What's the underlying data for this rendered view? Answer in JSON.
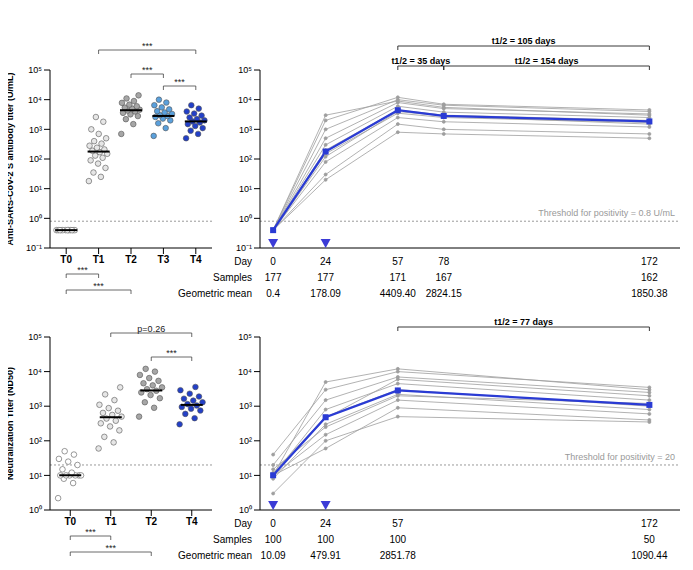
{
  "chart_data": [
    {
      "type": "scatter",
      "log": "y",
      "y_label": "Anti-SARS-CoV-2 S antibody titer (U/mL)",
      "categories": [
        "T0",
        "T1",
        "T2",
        "T3",
        "T4"
      ],
      "groups": [
        {
          "category": "T0",
          "color": "#ffffff",
          "values": [
            0.4,
            0.4,
            0.4,
            0.4,
            0.4,
            0.4,
            0.4,
            0.4,
            0.4,
            0.4,
            0.4,
            0.4
          ]
        },
        {
          "category": "T1",
          "color": "#e6e6e6",
          "values": [
            18,
            25,
            35,
            50,
            70,
            90,
            110,
            130,
            150,
            170,
            190,
            210,
            240,
            280,
            330,
            400,
            500,
            700,
            1000,
            1800,
            2600
          ]
        },
        {
          "category": "T2",
          "color": "#a6a6a6",
          "values": [
            700,
            1500,
            2200,
            2800,
            3200,
            3600,
            4000,
            4300,
            4600,
            5000,
            5400,
            6000,
            6800,
            7800,
            9000,
            11000,
            14000
          ]
        },
        {
          "category": "T3",
          "color": "#5aa0dc",
          "values": [
            600,
            1100,
            1600,
            2000,
            2300,
            2600,
            2800,
            3000,
            3300,
            3700,
            4100,
            4700,
            5500,
            6500,
            8000,
            10000
          ]
        },
        {
          "category": "T4",
          "color": "#2340c8",
          "values": [
            500,
            700,
            900,
            1100,
            1300,
            1500,
            1700,
            1850,
            2000,
            2200,
            2500,
            2900,
            3400,
            4000,
            5000,
            6500
          ]
        }
      ],
      "geometric_means": [
        0.4,
        178.09,
        4409.4,
        2824.15,
        1850.38
      ],
      "threshold": 0.8,
      "ylim": [
        0.1,
        100000
      ],
      "yticks": [
        {
          "value": 0.1,
          "label": "10⁻¹"
        },
        {
          "value": 1,
          "label": "10⁰"
        },
        {
          "value": 10,
          "label": "10¹"
        },
        {
          "value": 100,
          "label": "10²"
        },
        {
          "value": 1000,
          "label": "10³"
        },
        {
          "value": 10000,
          "label": "10⁴"
        },
        {
          "value": 100000,
          "label": "10⁵"
        }
      ],
      "brackets": [
        {
          "from": "T1",
          "to": "T4",
          "label": "***"
        },
        {
          "from": "T2",
          "to": "T3",
          "label": "***"
        },
        {
          "from": "T3",
          "to": "T4",
          "label": "***"
        }
      ],
      "brackets_below": [
        {
          "from": "T0",
          "to": "T1",
          "label": "***"
        },
        {
          "from": "T0",
          "to": "T2",
          "label": "***"
        }
      ]
    },
    {
      "type": "line",
      "log": "y",
      "x": [
        0,
        24,
        57,
        78,
        172
      ],
      "xlim": [
        -6,
        186
      ],
      "ylim": [
        0.1,
        100000
      ],
      "yticks": [
        {
          "value": 0.1,
          "label": "10⁻¹"
        },
        {
          "value": 1,
          "label": "10⁰"
        },
        {
          "value": 10,
          "label": "10¹"
        },
        {
          "value": 100,
          "label": "10²"
        },
        {
          "value": 1000,
          "label": "10³"
        },
        {
          "value": 10000,
          "label": "10⁴"
        },
        {
          "value": 100000,
          "label": "10⁵"
        }
      ],
      "individual_color": "#9e9e9e",
      "individual_values": [
        [
          0.4,
          30,
          1500,
          1000,
          700
        ],
        [
          0.4,
          80,
          2500,
          1800,
          1200
        ],
        [
          0.4,
          150,
          3500,
          2500,
          1700
        ],
        [
          0.4,
          200,
          4500,
          3000,
          2000
        ],
        [
          0.4,
          300,
          6000,
          3800,
          2500
        ],
        [
          0.4,
          500,
          8000,
          5000,
          3300
        ],
        [
          0.4,
          1000,
          10000,
          6500,
          4000
        ],
        [
          0.4,
          2000,
          12000,
          7000,
          4500
        ],
        [
          0.4,
          20,
          800,
          700,
          500
        ],
        [
          0.4,
          120,
          4000,
          2800,
          1500
        ],
        [
          0.4,
          3000,
          9000,
          5500,
          3000
        ]
      ],
      "geometric_mean": {
        "color": "#2a3bd4",
        "values": [
          0.4,
          178.09,
          4409.4,
          2824.15,
          1850.38
        ],
        "value_labels": [
          "0.4",
          "178.09",
          "4409.40",
          "2824.15",
          "1850.38"
        ]
      },
      "x_label": "Day",
      "samples_label": "Samples",
      "samples": [
        177,
        177,
        171,
        167,
        162
      ],
      "mean_label": "Geometric mean",
      "threshold": {
        "value": 0.8,
        "label": "Threshold for positivity = 0.8 U/mL"
      },
      "dose_days": [
        0,
        24
      ],
      "dose_color": "#3b3bd6",
      "half_lives": [
        {
          "from": 57,
          "to": 172,
          "label": "t1/2 = 105 days"
        },
        {
          "from": 57,
          "to": 78,
          "label": "t1/2 = 35 days"
        },
        {
          "from": 78,
          "to": 172,
          "label": "t1/2 = 154 days"
        }
      ]
    },
    {
      "type": "scatter",
      "log": "y",
      "y_label": "Neutralization Titer (ND50)",
      "categories": [
        "T0",
        "T1",
        "T2",
        "T4"
      ],
      "groups": [
        {
          "category": "T0",
          "color": "#ffffff",
          "values": [
            2.2,
            6,
            8,
            10,
            10,
            10,
            10,
            10,
            10,
            12,
            15,
            20,
            25,
            30,
            40,
            50
          ]
        },
        {
          "category": "T1",
          "color": "#e6e6e6",
          "values": [
            60,
            90,
            130,
            200,
            260,
            320,
            380,
            440,
            500,
            560,
            640,
            740,
            880,
            1100,
            1500,
            2200,
            3500
          ]
        },
        {
          "category": "T2",
          "color": "#a6a6a6",
          "values": [
            500,
            900,
            1300,
            1700,
            2100,
            2500,
            2800,
            3100,
            3500,
            4000,
            4600,
            5400,
            6500,
            8000,
            10000,
            12000
          ]
        },
        {
          "category": "T4",
          "color": "#2340c8",
          "values": [
            300,
            450,
            600,
            750,
            850,
            950,
            1050,
            1150,
            1300,
            1450,
            1650,
            1900,
            2300,
            2900,
            3600
          ]
        }
      ],
      "geometric_means": [
        10.09,
        479.91,
        2851.78,
        1090.44
      ],
      "threshold": 20,
      "ylim": [
        1,
        100000
      ],
      "yticks": [
        {
          "value": 1,
          "label": "10⁰"
        },
        {
          "value": 10,
          "label": "10¹"
        },
        {
          "value": 100,
          "label": "10²"
        },
        {
          "value": 1000,
          "label": "10³"
        },
        {
          "value": 10000,
          "label": "10⁴"
        },
        {
          "value": 100000,
          "label": "10⁵"
        }
      ],
      "brackets": [
        {
          "from": "T1",
          "to": "T4",
          "label": "p=0.26"
        },
        {
          "from": "T2",
          "to": "T4",
          "label": "***"
        }
      ],
      "brackets_below": [
        {
          "from": "T0",
          "to": "T1",
          "label": "***"
        },
        {
          "from": "T0",
          "to": "T2",
          "label": "***"
        }
      ]
    },
    {
      "type": "line",
      "log": "y",
      "x": [
        0,
        24,
        57,
        172
      ],
      "xlim": [
        -6,
        186
      ],
      "ylim": [
        1,
        100000
      ],
      "yticks": [
        {
          "value": 1,
          "label": "10⁰"
        },
        {
          "value": 10,
          "label": "10¹"
        },
        {
          "value": 100,
          "label": "10²"
        },
        {
          "value": 1000,
          "label": "10³"
        },
        {
          "value": 10000,
          "label": "10⁴"
        },
        {
          "value": 100000,
          "label": "10⁵"
        }
      ],
      "individual_color": "#9e9e9e",
      "individual_values": [
        [
          10,
          60,
          900,
          400
        ],
        [
          10,
          150,
          1500,
          600
        ],
        [
          8,
          300,
          2200,
          800
        ],
        [
          12,
          500,
          3000,
          1000
        ],
        [
          10,
          800,
          4500,
          1500
        ],
        [
          20,
          1500,
          7000,
          2500
        ],
        [
          40,
          3000,
          10000,
          3500
        ],
        [
          10,
          5000,
          12000,
          3000
        ],
        [
          3,
          100,
          500,
          350
        ],
        [
          15,
          250,
          2000,
          1200
        ],
        [
          10,
          450,
          6000,
          2000
        ]
      ],
      "geometric_mean": {
        "color": "#2a3bd4",
        "values": [
          10.09,
          479.91,
          2851.78,
          1090.44
        ]
      },
      "x_label": "Day",
      "samples_label": "Samples",
      "samples": [
        100,
        100,
        100,
        50
      ],
      "mean_label": "Geometric mean",
      "threshold": {
        "value": 20,
        "label": "Threshold for positivity = 20"
      },
      "dose_days": [
        0,
        24
      ],
      "dose_color": "#3b3bd6",
      "half_lives": [
        {
          "from": 57,
          "to": 172,
          "label": "t1/2 = 77 days"
        }
      ]
    }
  ]
}
